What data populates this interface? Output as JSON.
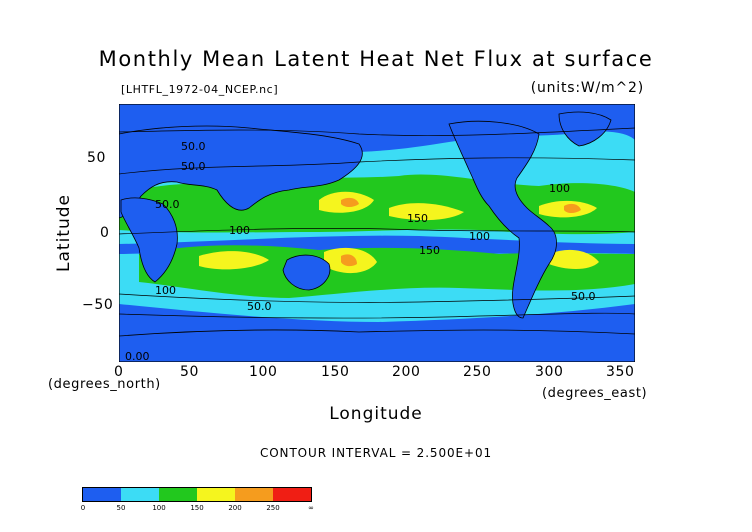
{
  "title": "Monthly Mean Latent Heat Net Flux at surface",
  "filename": "[LHTFL_1972-04_NCEP.nc]",
  "units": "(units:W/m^2)",
  "ylabel": "Latitude",
  "xlabel": "Longitude",
  "xunit_north": "(degrees_north)",
  "xunit_east": "(degrees_east)",
  "contour_interval": "CONTOUR INTERVAL = 2.500E+01",
  "x_ticks": [
    "0",
    "50",
    "100",
    "150",
    "200",
    "250",
    "300",
    "350"
  ],
  "y_ticks": [
    "50",
    "0",
    "−50"
  ],
  "contour_labels": [
    "50.0",
    "50.0",
    "50.0",
    "100",
    "150",
    "100",
    "150",
    "100",
    "50.0",
    "100",
    "50.0",
    "0.00"
  ],
  "colorbar": {
    "labels": [
      "0",
      "50",
      "100",
      "150",
      "200",
      "250",
      "∞"
    ],
    "colors": [
      "#1e5ef0",
      "#3cdcf5",
      "#22c81e",
      "#f5f51e",
      "#f59c1e",
      "#f01e14"
    ]
  },
  "map_colors": {
    "c0": "#1e5ef0",
    "c1": "#3cdcf5",
    "c2": "#22c81e",
    "c3": "#f5f51e",
    "c4": "#f59c1e",
    "c5": "#f01e14",
    "land": "#1e5ef0"
  }
}
